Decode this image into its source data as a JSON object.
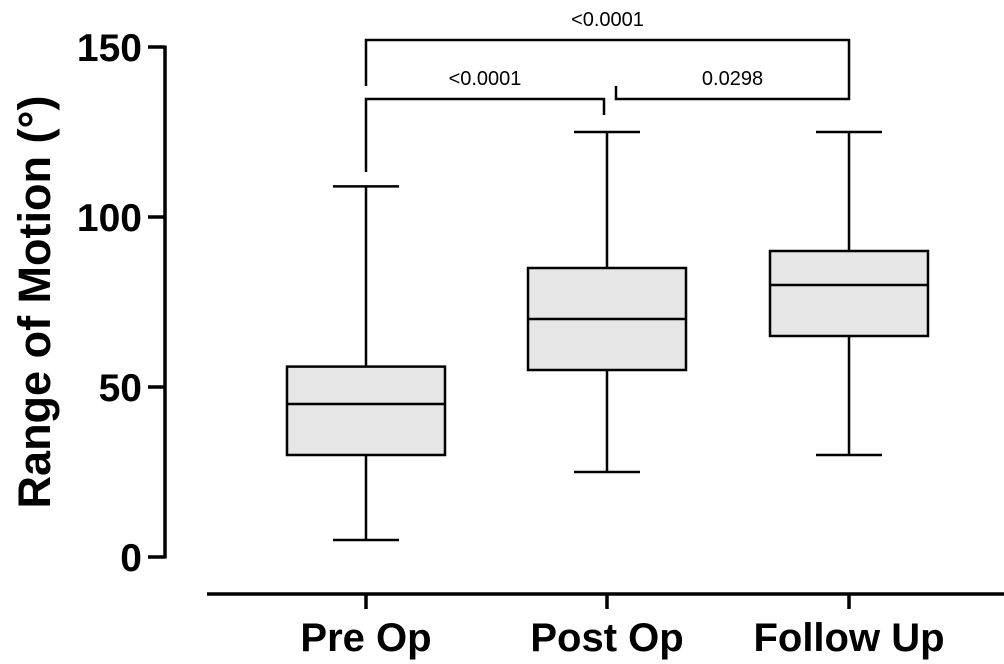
{
  "chart_data": {
    "type": "box",
    "ylabel": "Range of Motion (°)",
    "ylim": [
      0,
      150
    ],
    "yticks": [
      0,
      50,
      100,
      150
    ],
    "grid": false,
    "box_fill": "#e6e6e6",
    "line_color": "#000000",
    "categories": [
      "Pre Op",
      "Post Op",
      "Follow Up"
    ],
    "boxes": [
      {
        "category": "Pre Op",
        "min": 5,
        "q1": 30,
        "median": 45,
        "q3": 56,
        "max": 109
      },
      {
        "category": "Post Op",
        "min": 25,
        "q1": 55,
        "median": 70,
        "q3": 85,
        "max": 125
      },
      {
        "category": "Follow Up",
        "min": 30,
        "q1": 65,
        "median": 80,
        "q3": 90,
        "max": 125
      }
    ],
    "significance": [
      {
        "from": "Pre Op",
        "to": "Post Op",
        "label": "<0.0001",
        "level": 1
      },
      {
        "from": "Post Op",
        "to": "Follow Up",
        "label": "0.0298",
        "level": 1
      },
      {
        "from": "Pre Op",
        "to": "Follow Up",
        "label": "<0.0001",
        "level": 2
      }
    ]
  }
}
